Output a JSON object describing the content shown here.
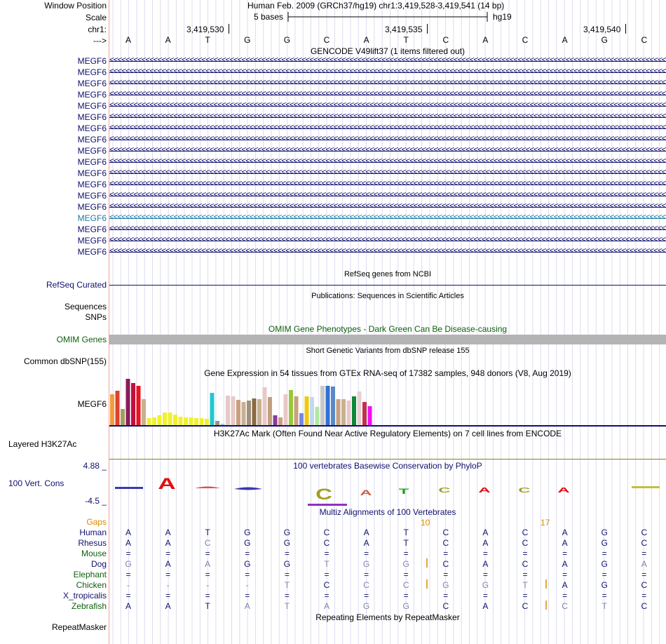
{
  "header": {
    "window_position_label": "Window Position",
    "scale_label": "Scale",
    "chrom_label": "chr1:",
    "arrow_label": "--->",
    "assembly_position": "Human Feb. 2009 (GRCh37/hg19)   chr1:3,419,528-3,419,541 (14 bp)",
    "scale_text": "5 bases",
    "scale_db": "hg19",
    "ruler_ticks": [
      "3,419,530",
      "3,419,535",
      "3,419,540"
    ]
  },
  "dna_sequence": [
    "A",
    "A",
    "T",
    "G",
    "G",
    "C",
    "A",
    "T",
    "C",
    "A",
    "C",
    "A",
    "G",
    "C"
  ],
  "gencode": {
    "title": "GENCODE V49lift37 (1 items filtered out)",
    "gene_names": [
      "MEGF6",
      "MEGF6",
      "MEGF6",
      "MEGF6",
      "MEGF6",
      "MEGF6",
      "MEGF6",
      "MEGF6",
      "MEGF6",
      "MEGF6",
      "MEGF6",
      "MEGF6",
      "MEGF6",
      "MEGF6",
      "MEGF6",
      "MEGF6",
      "MEGF6",
      "MEGF6"
    ],
    "strand_glyph": "<<<<<<<<<<<<<<<<<<<<<<<<<<<<<<<<<<<<<<<<<<<<<<<<<<<<<<<<<<<<<<<<<<<<<<<<<<<<<<<<<<<<<<<<<<<<<<<<<<<<<<<<<<<<<<<<<<<<<<<<<<<<<<<<<<<<<<<<<<<<<<",
    "highlight_row_index": 14,
    "colors": {
      "default": "#10106e",
      "highlight": "#1a7aa8"
    }
  },
  "refseq": {
    "title": "RefSeq genes from NCBI",
    "label": "RefSeq Curated"
  },
  "publications": {
    "title": "Publications: Sequences in Scientific Articles",
    "label": "Sequences"
  },
  "snps": {
    "label": "SNPs"
  },
  "omim": {
    "title": "OMIM Gene Phenotypes - Dark Green Can Be Disease-causing",
    "label": "OMIM Genes",
    "bar_color": "#b4b4b4"
  },
  "dbsnp": {
    "title": "Short Genetic Variants from dbSNP release 155",
    "label": "Common dbSNP(155)"
  },
  "gtex": {
    "title": "Gene Expression in 54 tissues from GTEx RNA-seq of 17382 samples, 948 donors (V8, Aug 2019)",
    "label": "MEGF6"
  },
  "h3k27ac": {
    "title": "H3K27Ac Mark (Often Found Near Active Regulatory Elements) on 7 cell lines from ENCODE",
    "label": "Layered H3K27Ac"
  },
  "phylop": {
    "title": "100 vertebrates Basewise Conservation by PhyloP",
    "label": "100 Vert. Cons",
    "max_label": "4.88 _",
    "min_label": "-4.5 _"
  },
  "multiz": {
    "title": "Multiz Alignments of 100 Vertebrates",
    "gaps_label": "Gaps",
    "gap_counts": [
      "10",
      "17"
    ],
    "species": [
      {
        "name": "Human",
        "color": "#10106e",
        "bases": [
          "A",
          "A",
          "T",
          "G",
          "G",
          "C",
          "A",
          "T",
          "C",
          "A",
          "C",
          "A",
          "G",
          "C"
        ]
      },
      {
        "name": "Rhesus",
        "color": "#10106e",
        "bases": [
          "A",
          "A",
          "C",
          "G",
          "G",
          "C",
          "A",
          "T",
          "C",
          "A",
          "C",
          "A",
          "G",
          "C"
        ]
      },
      {
        "name": "Mouse",
        "color": "#0b5e0b",
        "bases": [
          "=",
          "=",
          "=",
          "=",
          "=",
          "=",
          "=",
          "=",
          "=",
          "=",
          "=",
          "=",
          "=",
          "="
        ]
      },
      {
        "name": "Dog",
        "color": "#10106e",
        "bases": [
          "G",
          "A",
          "A",
          "G",
          "G",
          "T",
          "G",
          "G",
          "C",
          "A",
          "C",
          "A",
          "G",
          "A"
        ]
      },
      {
        "name": "Elephant",
        "color": "#0b5e0b",
        "bases": [
          "=",
          "=",
          "=",
          "=",
          "=",
          "=",
          "=",
          "=",
          "=",
          "=",
          "=",
          "=",
          "=",
          "="
        ]
      },
      {
        "name": "Chicken",
        "color": "#0b5e0b",
        "bases": [
          "-",
          "-",
          "-",
          "-",
          "T",
          "C",
          "C",
          "C",
          "G",
          "G",
          "T",
          "A",
          "G",
          "C"
        ]
      },
      {
        "name": "X_tropicalis",
        "color": "#10106e",
        "bases": [
          "=",
          "=",
          "=",
          "=",
          "=",
          "=",
          "=",
          "=",
          "=",
          "=",
          "=",
          "=",
          "=",
          "="
        ]
      },
      {
        "name": "Zebrafish",
        "color": "#0b5e0b",
        "bases": [
          "A",
          "A",
          "T",
          "A",
          "T",
          "A",
          "G",
          "G",
          "C",
          "A",
          "C",
          "C",
          "T",
          "C"
        ]
      }
    ]
  },
  "repeatmasker": {
    "title": "Repeating Elements by RepeatMasker",
    "label": "RepeatMasker"
  }
}
